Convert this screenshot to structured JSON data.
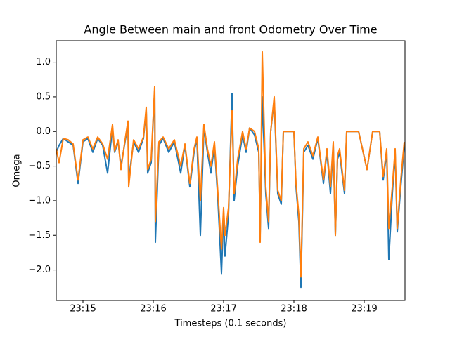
{
  "chart_data": {
    "type": "line",
    "title": "Angle Between main and front Odometry Over Time",
    "x_label": "Timesteps (0.1 seconds)",
    "y_label": "Omega",
    "xlim": [
      1394.62,
      1399.58
    ],
    "ylim": [
      -2.44,
      1.31
    ],
    "xticks": [
      {
        "value": 1395,
        "label": "23:15"
      },
      {
        "value": 1396,
        "label": "23:16"
      },
      {
        "value": 1397,
        "label": "23:17"
      },
      {
        "value": 1398,
        "label": "23:18"
      },
      {
        "value": 1399,
        "label": "23:19"
      }
    ],
    "yticks": [
      {
        "value": -2,
        "label": "−2.0"
      },
      {
        "value": -1.5,
        "label": "−1.5"
      },
      {
        "value": -1,
        "label": "−1.0"
      },
      {
        "value": -0.5,
        "label": "−0.5"
      },
      {
        "value": 0,
        "label": "0.0"
      },
      {
        "value": 0.5,
        "label": "0.5"
      },
      {
        "value": 1,
        "label": "1.0"
      }
    ],
    "grid": false,
    "x": [
      1394.62,
      1394.66,
      1394.72,
      1394.79,
      1394.86,
      1394.93,
      1395.0,
      1395.07,
      1395.14,
      1395.21,
      1395.28,
      1395.35,
      1395.42,
      1395.45,
      1395.5,
      1395.54,
      1395.59,
      1395.64,
      1395.65,
      1395.72,
      1395.79,
      1395.86,
      1395.9,
      1395.92,
      1395.97,
      1396.02,
      1396.03,
      1396.08,
      1396.14,
      1396.22,
      1396.3,
      1396.39,
      1396.45,
      1396.52,
      1396.58,
      1396.62,
      1396.67,
      1396.72,
      1396.77,
      1396.82,
      1396.87,
      1396.92,
      1396.97,
      1397.0,
      1397.02,
      1397.07,
      1397.12,
      1397.15,
      1397.2,
      1397.27,
      1397.32,
      1397.37,
      1397.44,
      1397.5,
      1397.52,
      1397.55,
      1397.6,
      1397.64,
      1397.67,
      1397.72,
      1397.77,
      1397.82,
      1397.85,
      1397.92,
      1398.0,
      1398.03,
      1398.07,
      1398.1,
      1398.14,
      1398.2,
      1398.27,
      1398.34,
      1398.42,
      1398.47,
      1398.52,
      1398.56,
      1398.59,
      1398.62,
      1398.65,
      1398.72,
      1398.75,
      1398.82,
      1398.92,
      1399.04,
      1399.12,
      1399.22,
      1399.27,
      1399.32,
      1399.35,
      1399.4,
      1399.44,
      1399.47,
      1399.52,
      1399.57
    ],
    "series": [
      {
        "color": "#1f77b4",
        "values": [
          -0.3,
          -0.2,
          -0.1,
          -0.15,
          -0.2,
          -0.75,
          -0.15,
          -0.1,
          -0.3,
          -0.1,
          -0.2,
          -0.6,
          0.05,
          -0.3,
          -0.15,
          -0.5,
          -0.2,
          0.1,
          -0.7,
          -0.15,
          -0.3,
          -0.1,
          0.3,
          -0.6,
          -0.45,
          0.6,
          -1.6,
          -0.2,
          -0.1,
          -0.3,
          -0.15,
          -0.6,
          -0.2,
          -0.8,
          -0.3,
          -0.1,
          -1.5,
          0.05,
          -0.3,
          -0.6,
          -0.2,
          -1.0,
          -2.05,
          -1.2,
          -1.8,
          -1.2,
          0.55,
          -1.0,
          -0.5,
          -0.05,
          -0.3,
          0.05,
          -0.05,
          -0.3,
          -1.5,
          0.5,
          -0.9,
          -1.4,
          0.0,
          0.45,
          -0.9,
          -1.05,
          0.0,
          0.0,
          0.0,
          -0.8,
          -1.3,
          -2.25,
          -0.3,
          -0.2,
          -0.4,
          -0.1,
          -0.75,
          -0.3,
          -0.9,
          -0.2,
          -1.5,
          -0.4,
          -0.3,
          -0.9,
          0.0,
          0.0,
          0.0,
          -0.55,
          0.0,
          0.0,
          -0.7,
          -0.3,
          -1.85,
          -0.9,
          -0.3,
          -1.45,
          -0.8,
          -0.2
        ]
      },
      {
        "color": "#ff7f0e",
        "values": [
          -0.25,
          -0.45,
          -0.1,
          -0.12,
          -0.18,
          -0.7,
          -0.12,
          -0.08,
          -0.25,
          -0.08,
          -0.18,
          -0.4,
          0.1,
          -0.28,
          -0.12,
          -0.55,
          -0.18,
          0.15,
          -0.8,
          -0.12,
          -0.25,
          -0.08,
          0.35,
          -0.55,
          -0.4,
          0.65,
          -1.3,
          -0.15,
          -0.08,
          -0.25,
          -0.12,
          -0.5,
          -0.18,
          -0.75,
          -0.25,
          -0.08,
          -1.0,
          0.1,
          -0.25,
          -0.5,
          -0.15,
          -0.9,
          -1.7,
          -1.1,
          -1.5,
          -1.1,
          0.3,
          -0.9,
          -0.4,
          0.0,
          -0.25,
          0.05,
          0.0,
          -0.25,
          -1.6,
          1.15,
          -0.8,
          -1.3,
          0.0,
          0.5,
          -0.85,
          -1.0,
          0.0,
          0.0,
          0.0,
          -0.75,
          -1.2,
          -2.1,
          -0.25,
          -0.15,
          -0.35,
          -0.08,
          -0.7,
          -0.25,
          -0.8,
          -0.15,
          -1.5,
          -0.35,
          -0.25,
          -0.85,
          0.0,
          0.0,
          0.0,
          -0.55,
          0.0,
          0.0,
          -0.65,
          -0.25,
          -1.4,
          -0.8,
          -0.25,
          -1.4,
          -0.7,
          -0.15
        ]
      }
    ]
  }
}
